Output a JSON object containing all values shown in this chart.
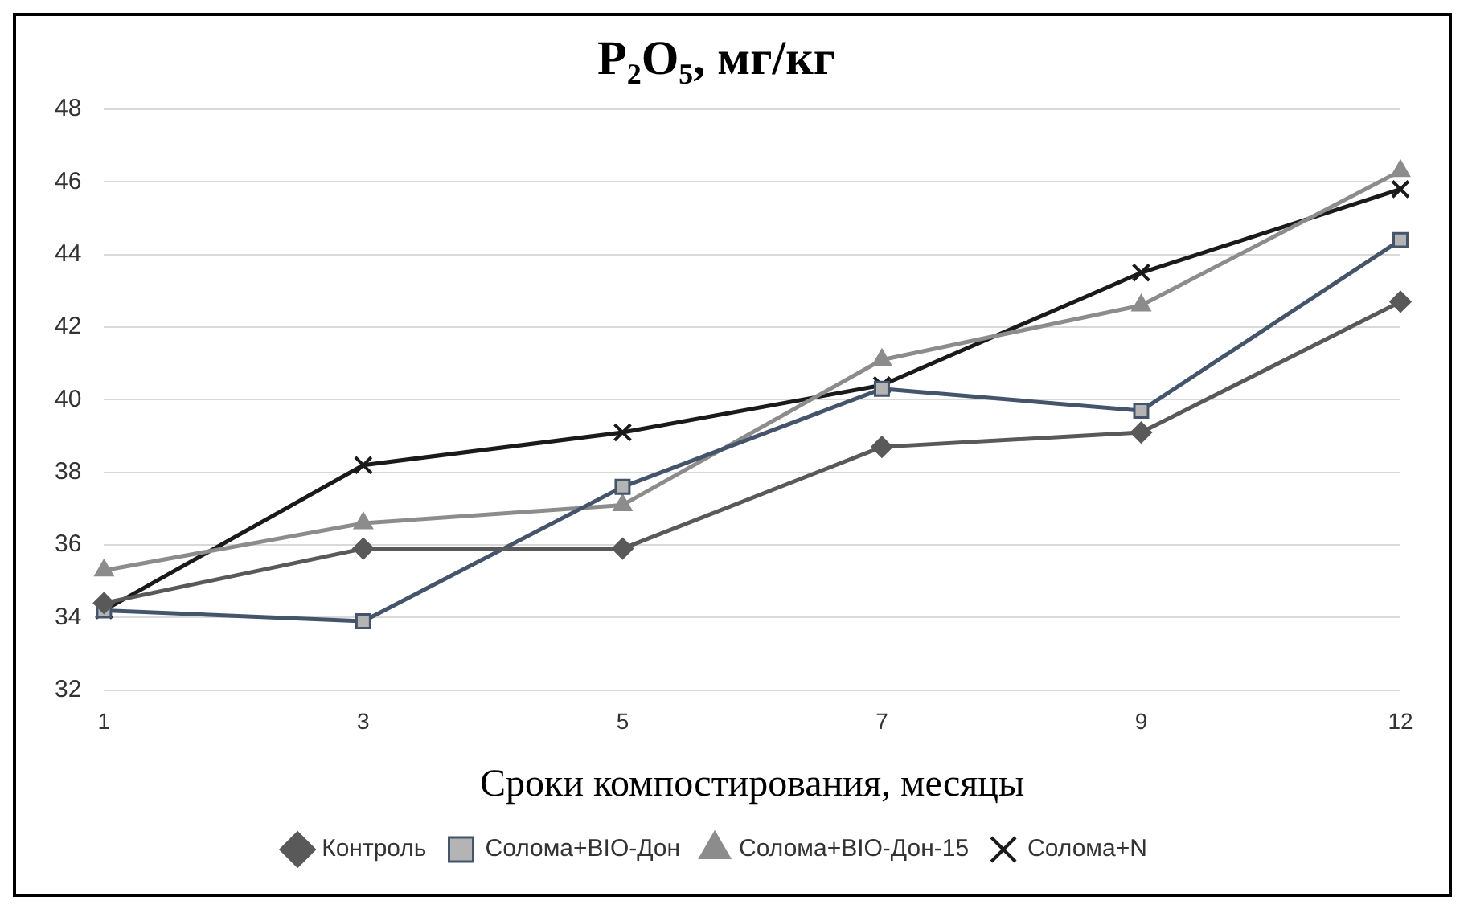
{
  "chart_data": {
    "type": "line",
    "title": "P₂O₅, мг/кг",
    "xlabel": "Сроки компостирования, месяцы",
    "categories": [
      "1",
      "3",
      "5",
      "7",
      "9",
      "12"
    ],
    "series": [
      {
        "name": "Контроль",
        "color": "#595959",
        "marker": "diamond",
        "values": [
          34.4,
          35.9,
          35.9,
          38.7,
          39.1,
          42.7
        ]
      },
      {
        "name": "Солома+BIO-Дон",
        "color": "#44546a",
        "marker": "square",
        "values": [
          34.2,
          33.9,
          37.6,
          40.3,
          39.7,
          44.4
        ]
      },
      {
        "name": "Солома+BIO-Дон-15",
        "color": "#8c8c8c",
        "marker": "triangle",
        "values": [
          35.3,
          36.6,
          37.1,
          41.1,
          42.6,
          46.3
        ]
      },
      {
        "name": "Солома+N",
        "color": "#1a1a1a",
        "marker": "cross",
        "values": [
          34.2,
          38.2,
          39.1,
          40.4,
          43.5,
          45.8
        ]
      }
    ],
    "ylim": [
      32,
      48
    ],
    "yticks": [
      32,
      34,
      36,
      38,
      40,
      42,
      44,
      46,
      48
    ],
    "grid": "y",
    "legend": "bottom",
    "line_style": "solid"
  }
}
